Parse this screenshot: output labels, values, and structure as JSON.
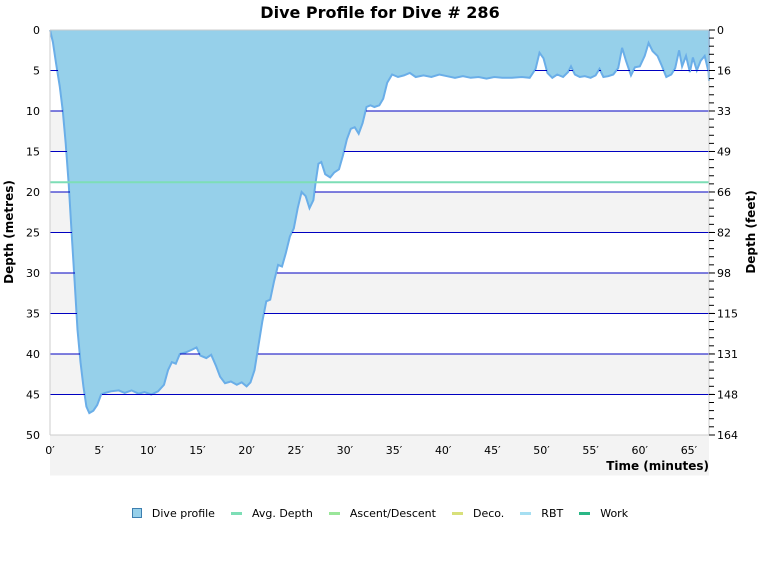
{
  "chart_data": {
    "type": "area",
    "title": "Dive Profile for Dive # 286",
    "xlabel": "Time (minutes)",
    "ylabel": "Depth (metres)",
    "ylabel_right": "Depth (feet)",
    "xlim": [
      0,
      67
    ],
    "ylim": [
      50,
      0
    ],
    "x_ticks": [
      "0′",
      "5′",
      "10′",
      "15′",
      "20′",
      "25′",
      "30′",
      "35′",
      "40′",
      "45′",
      "50′",
      "55′",
      "60′",
      "65′"
    ],
    "y_ticks_left": [
      "0",
      "5",
      "10",
      "15",
      "20",
      "25",
      "30",
      "35",
      "40",
      "45",
      "50"
    ],
    "y_ticks_right": [
      "0",
      "16",
      "33",
      "49",
      "66",
      "82",
      "98",
      "115",
      "131",
      "148",
      "164"
    ],
    "grid": true,
    "legend_position": "bottom",
    "series": [
      {
        "name": "Dive profile",
        "color": "#96d0ea",
        "stroke": "#6aaee8",
        "points": [
          [
            0,
            0
          ],
          [
            0.3,
            1.5
          ],
          [
            0.6,
            4
          ],
          [
            1.0,
            7
          ],
          [
            1.3,
            10
          ],
          [
            1.6,
            14
          ],
          [
            1.9,
            19
          ],
          [
            2.2,
            25
          ],
          [
            2.5,
            31
          ],
          [
            2.8,
            37
          ],
          [
            3.1,
            41
          ],
          [
            3.4,
            44
          ],
          [
            3.7,
            46.5
          ],
          [
            4.0,
            47.3
          ],
          [
            4.4,
            47
          ],
          [
            4.8,
            46.3
          ],
          [
            5.2,
            45
          ],
          [
            5.6,
            44.8
          ],
          [
            6.2,
            44.6
          ],
          [
            7.0,
            44.5
          ],
          [
            7.6,
            44.8
          ],
          [
            8.3,
            44.5
          ],
          [
            9.0,
            44.9
          ],
          [
            9.6,
            44.7
          ],
          [
            10.3,
            45
          ],
          [
            11.0,
            44.6
          ],
          [
            11.6,
            43.8
          ],
          [
            12.0,
            42
          ],
          [
            12.4,
            41
          ],
          [
            12.8,
            41.2
          ],
          [
            13.2,
            40
          ],
          [
            13.8,
            39.8
          ],
          [
            14.4,
            39.5
          ],
          [
            14.9,
            39.2
          ],
          [
            15.3,
            40.2
          ],
          [
            15.9,
            40.5
          ],
          [
            16.4,
            40.1
          ],
          [
            16.9,
            41.5
          ],
          [
            17.3,
            42.8
          ],
          [
            17.8,
            43.6
          ],
          [
            18.4,
            43.4
          ],
          [
            19.0,
            43.8
          ],
          [
            19.5,
            43.5
          ],
          [
            20.0,
            44
          ],
          [
            20.4,
            43.5
          ],
          [
            20.8,
            42
          ],
          [
            21.2,
            39
          ],
          [
            21.6,
            36
          ],
          [
            22.0,
            33.5
          ],
          [
            22.4,
            33.3
          ],
          [
            22.8,
            31
          ],
          [
            23.2,
            29
          ],
          [
            23.6,
            29.2
          ],
          [
            24.0,
            27.5
          ],
          [
            24.4,
            25.5
          ],
          [
            24.8,
            24.5
          ],
          [
            25.2,
            22
          ],
          [
            25.6,
            20
          ],
          [
            26.0,
            20.5
          ],
          [
            26.4,
            22
          ],
          [
            26.8,
            21
          ],
          [
            27.0,
            19
          ],
          [
            27.3,
            16.5
          ],
          [
            27.6,
            16.3
          ],
          [
            28.0,
            17.8
          ],
          [
            28.5,
            18.2
          ],
          [
            28.9,
            17.6
          ],
          [
            29.4,
            17.2
          ],
          [
            29.8,
            15.5
          ],
          [
            30.2,
            13.5
          ],
          [
            30.6,
            12.2
          ],
          [
            31.0,
            12
          ],
          [
            31.4,
            12.8
          ],
          [
            31.8,
            11.5
          ],
          [
            32.2,
            9.5
          ],
          [
            32.6,
            9.3
          ],
          [
            33.0,
            9.5
          ],
          [
            33.5,
            9.3
          ],
          [
            33.9,
            8.5
          ],
          [
            34.3,
            6.5
          ],
          [
            34.8,
            5.5
          ],
          [
            35.4,
            5.8
          ],
          [
            36.0,
            5.6
          ],
          [
            36.6,
            5.3
          ],
          [
            37.2,
            5.8
          ],
          [
            38.0,
            5.6
          ],
          [
            38.8,
            5.8
          ],
          [
            39.6,
            5.5
          ],
          [
            40.4,
            5.7
          ],
          [
            41.2,
            5.9
          ],
          [
            42.0,
            5.7
          ],
          [
            42.8,
            5.9
          ],
          [
            43.6,
            5.8
          ],
          [
            44.4,
            6.0
          ],
          [
            45.2,
            5.8
          ],
          [
            46.0,
            5.9
          ],
          [
            47.0,
            5.9
          ],
          [
            48.0,
            5.8
          ],
          [
            48.8,
            5.9
          ],
          [
            49.4,
            4.8
          ],
          [
            49.8,
            2.8
          ],
          [
            50.2,
            3.5
          ],
          [
            50.6,
            5.3
          ],
          [
            51.1,
            5.9
          ],
          [
            51.6,
            5.5
          ],
          [
            52.2,
            5.8
          ],
          [
            52.7,
            5.2
          ],
          [
            53.0,
            4.5
          ],
          [
            53.4,
            5.5
          ],
          [
            53.9,
            5.8
          ],
          [
            54.4,
            5.7
          ],
          [
            55.0,
            5.9
          ],
          [
            55.5,
            5.6
          ],
          [
            55.9,
            4.8
          ],
          [
            56.3,
            5.8
          ],
          [
            56.8,
            5.7
          ],
          [
            57.3,
            5.5
          ],
          [
            57.8,
            4.7
          ],
          [
            58.2,
            2.2
          ],
          [
            58.6,
            3.8
          ],
          [
            59.1,
            5.6
          ],
          [
            59.5,
            4.6
          ],
          [
            60.0,
            4.5
          ],
          [
            60.5,
            3.2
          ],
          [
            60.9,
            1.6
          ],
          [
            61.3,
            2.6
          ],
          [
            61.8,
            3.2
          ],
          [
            62.2,
            4.3
          ],
          [
            62.7,
            5.8
          ],
          [
            63.2,
            5.5
          ],
          [
            63.6,
            4.7
          ],
          [
            64.0,
            2.5
          ],
          [
            64.3,
            4.5
          ],
          [
            64.7,
            3.2
          ],
          [
            65.1,
            5.2
          ],
          [
            65.4,
            3.4
          ],
          [
            65.8,
            5.0
          ],
          [
            66.2,
            3.8
          ],
          [
            66.6,
            3.2
          ],
          [
            67.0,
            5.2
          ],
          [
            67.3,
            6.3
          ],
          [
            67.6,
            4.5
          ],
          [
            67.9,
            2.5
          ],
          [
            68.2,
            0.5
          ],
          [
            68.3,
            0
          ]
        ]
      },
      {
        "name": "Avg. Depth",
        "color": "#7ddeb6",
        "value": 18.8
      },
      {
        "name": "Ascent/Descent",
        "color": "#9ae69a"
      },
      {
        "name": "Deco.",
        "color": "#d8e07a"
      },
      {
        "name": "RBT",
        "color": "#a6dff2"
      },
      {
        "name": "Work",
        "color": "#2ab786"
      }
    ]
  },
  "legend": {
    "items": [
      {
        "label": "Dive profile",
        "kind": "box",
        "color": "#96d0ea",
        "border": "#3d7fb0"
      },
      {
        "label": "Avg. Depth",
        "kind": "line",
        "color": "#7ddeb6"
      },
      {
        "label": "Ascent/Descent",
        "kind": "line",
        "color": "#9ae69a"
      },
      {
        "label": "Deco.",
        "kind": "line",
        "color": "#d8e07a"
      },
      {
        "label": "RBT",
        "kind": "line",
        "color": "#a6dff2"
      },
      {
        "label": "Work",
        "kind": "line",
        "color": "#2ab786"
      }
    ]
  },
  "colors": {
    "grid_line": "#0000c0",
    "band_alt": "#f3f3f3",
    "axis": "#cccccc"
  }
}
